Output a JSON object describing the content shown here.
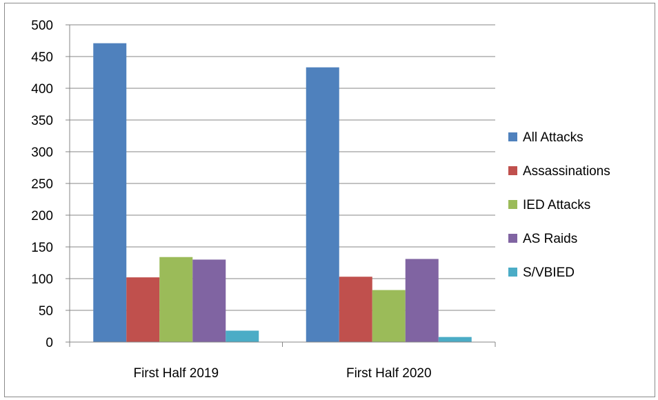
{
  "chart_data": {
    "type": "bar",
    "title": "",
    "xlabel": "",
    "ylabel": "",
    "categories": [
      "First Half 2019",
      "First Half 2020"
    ],
    "series": [
      {
        "name": "All Attacks",
        "values": [
          471,
          433
        ],
        "color": "#4f81bd"
      },
      {
        "name": "Assassinations",
        "values": [
          102,
          103
        ],
        "color": "#c0504d"
      },
      {
        "name": "IED Attacks",
        "values": [
          134,
          82
        ],
        "color": "#9bbb59"
      },
      {
        "name": "AS Raids",
        "values": [
          130,
          131
        ],
        "color": "#8064a2"
      },
      {
        "name": "S/VBIED",
        "values": [
          18,
          8
        ],
        "color": "#4bacc6"
      }
    ],
    "ylim": [
      0,
      500
    ],
    "y_ticks": [
      0,
      50,
      100,
      150,
      200,
      250,
      300,
      350,
      400,
      450,
      500
    ],
    "grid": true,
    "legend_position": "right"
  }
}
